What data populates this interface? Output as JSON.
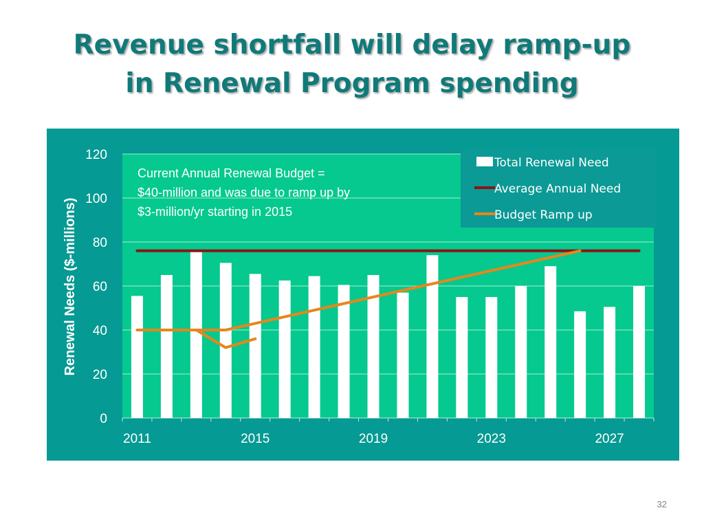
{
  "slide": {
    "title_line1": "Revenue shortfall will delay ramp-up",
    "title_line2": "in Renewal Program spending",
    "page_number": "32"
  },
  "colors": {
    "title": "#107a79",
    "frame_background": "#059a93",
    "plot_background": "#05c98e",
    "bars": "#ffffff",
    "average_line": "#8b1414",
    "budget_line": "#e8861c",
    "legend_background": "#0b9a95",
    "text": "#ffffff"
  },
  "chart_data": {
    "type": "bar",
    "title": "",
    "xlabel": "",
    "ylabel": "Renewal Needs ($-millions)",
    "ylim": [
      0,
      120
    ],
    "y_ticks": [
      "0",
      "20",
      "40",
      "60",
      "80",
      "100",
      "120"
    ],
    "x_tick_labels": [
      "2011",
      "2015",
      "2019",
      "2023",
      "2027"
    ],
    "categories": [
      2011,
      2012,
      2013,
      2014,
      2015,
      2016,
      2017,
      2018,
      2019,
      2020,
      2021,
      2022,
      2023,
      2024,
      2025,
      2026,
      2027,
      2028
    ],
    "series": [
      {
        "name": "Total Renewal Need",
        "type": "bar",
        "values": [
          55.5,
          65,
          75.5,
          70.5,
          65.5,
          62.5,
          64.5,
          60.5,
          65,
          57,
          74,
          55,
          55,
          60,
          69,
          48.5,
          50.5,
          60
        ]
      },
      {
        "name": "Average Annual Need",
        "type": "line",
        "x": [
          2011,
          2028
        ],
        "values": [
          76,
          76
        ]
      },
      {
        "name": "Budget Ramp up",
        "type": "line",
        "x": [
          2011,
          2013,
          2014,
          2026
        ],
        "values": [
          40,
          40,
          40,
          76
        ]
      },
      {
        "name": "",
        "type": "line",
        "x": [
          2013,
          2014,
          2015
        ],
        "values": [
          40,
          32,
          36
        ]
      }
    ],
    "annotation": [
      "Current Annual Renewal Budget =",
      "$40-million and was due to ramp up by",
      "$3-million/yr starting in 2015"
    ],
    "legend_position": "top-right",
    "grid": true
  }
}
